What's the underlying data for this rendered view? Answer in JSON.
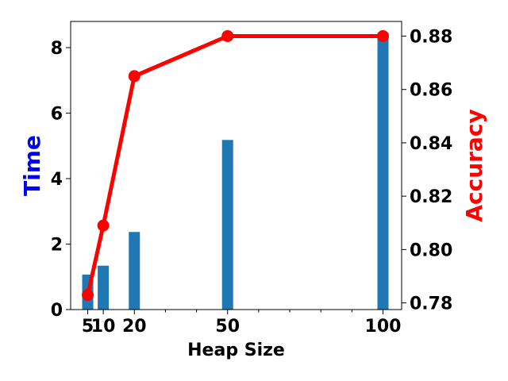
{
  "chart_data": {
    "type": "bar+line",
    "x_values": [
      5,
      10,
      20,
      50,
      100
    ],
    "xlabel": "Heap Size",
    "x_tick_labels": [
      "5",
      "10",
      "20",
      "50",
      "100"
    ],
    "bars": {
      "axis": "left",
      "color": "#1f77b4",
      "values": [
        1.07,
        1.34,
        2.37,
        5.18,
        8.45
      ]
    },
    "line": {
      "axis": "right",
      "color": "#ff0000",
      "values": [
        0.783,
        0.809,
        0.865,
        0.88,
        0.88
      ]
    },
    "left_axis": {
      "label": "Time",
      "label_color": "#0000ff",
      "ylim": [
        0,
        8.8
      ],
      "ticks": [
        0,
        2,
        4,
        6,
        8
      ],
      "tick_labels": [
        "0",
        "2",
        "4",
        "6",
        "8"
      ]
    },
    "right_axis": {
      "label": "Accuracy",
      "label_color": "#ff0000",
      "ylim": [
        0.7775,
        0.8855
      ],
      "ticks": [
        0.78,
        0.8,
        0.82,
        0.84,
        0.86,
        0.88
      ],
      "tick_labels": [
        "0.78",
        "0.80",
        "0.82",
        "0.84",
        "0.86",
        "0.88"
      ]
    },
    "xlim": [
      -0.5,
      106
    ],
    "x_minor_ticks": [
      30,
      40,
      60,
      70,
      80,
      90
    ],
    "grid": false
  }
}
